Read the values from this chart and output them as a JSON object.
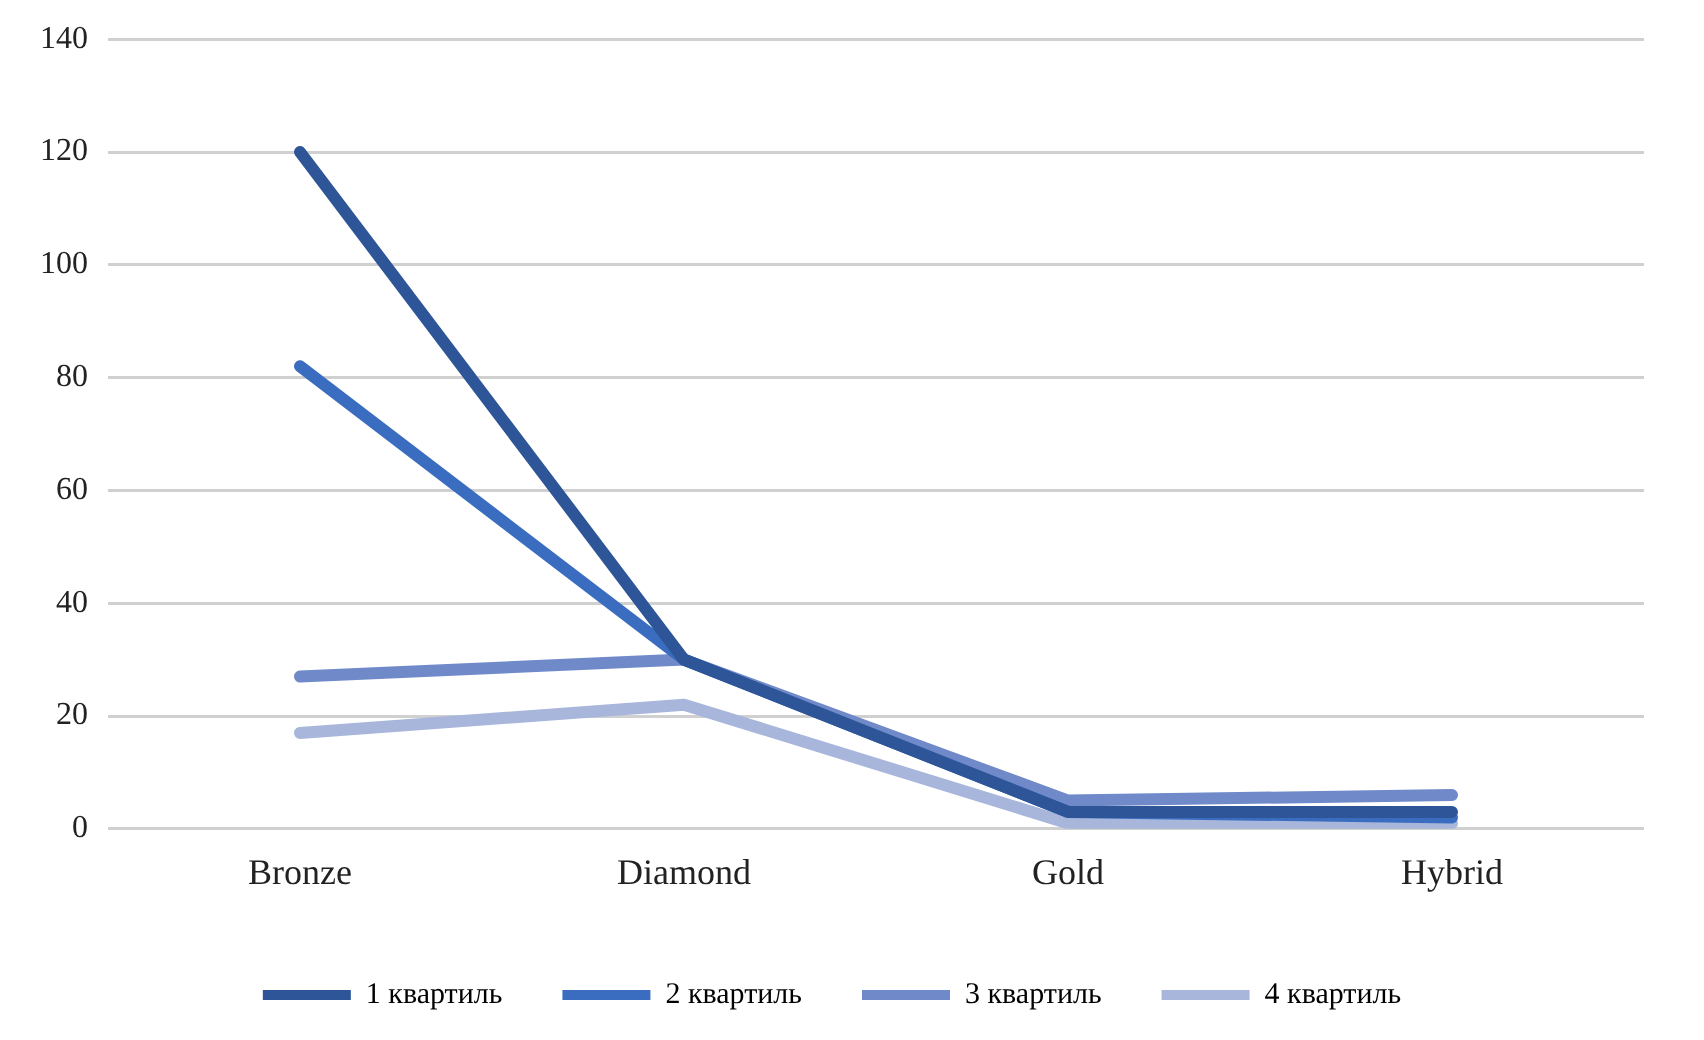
{
  "chart_data": {
    "type": "line",
    "categories": [
      "Bronze",
      "Diamond",
      "Gold",
      "Hybrid"
    ],
    "series": [
      {
        "name": "1 квартиль",
        "color": "#2e5597",
        "values": [
          120,
          30,
          3,
          3
        ]
      },
      {
        "name": "2 квартиль",
        "color": "#3a6dbf",
        "values": [
          82,
          30,
          3,
          2
        ]
      },
      {
        "name": "3 квартиль",
        "color": "#6f89c9",
        "values": [
          27,
          30,
          5,
          6
        ]
      },
      {
        "name": "4 квартиль",
        "color": "#a7b6da",
        "values": [
          17,
          22,
          1,
          1
        ]
      }
    ],
    "ylim": [
      0,
      140
    ],
    "yticks": [
      0,
      20,
      40,
      60,
      80,
      100,
      120,
      140
    ],
    "grid": "y",
    "legend": "bottom",
    "marker": "none",
    "line_style": "solid"
  }
}
